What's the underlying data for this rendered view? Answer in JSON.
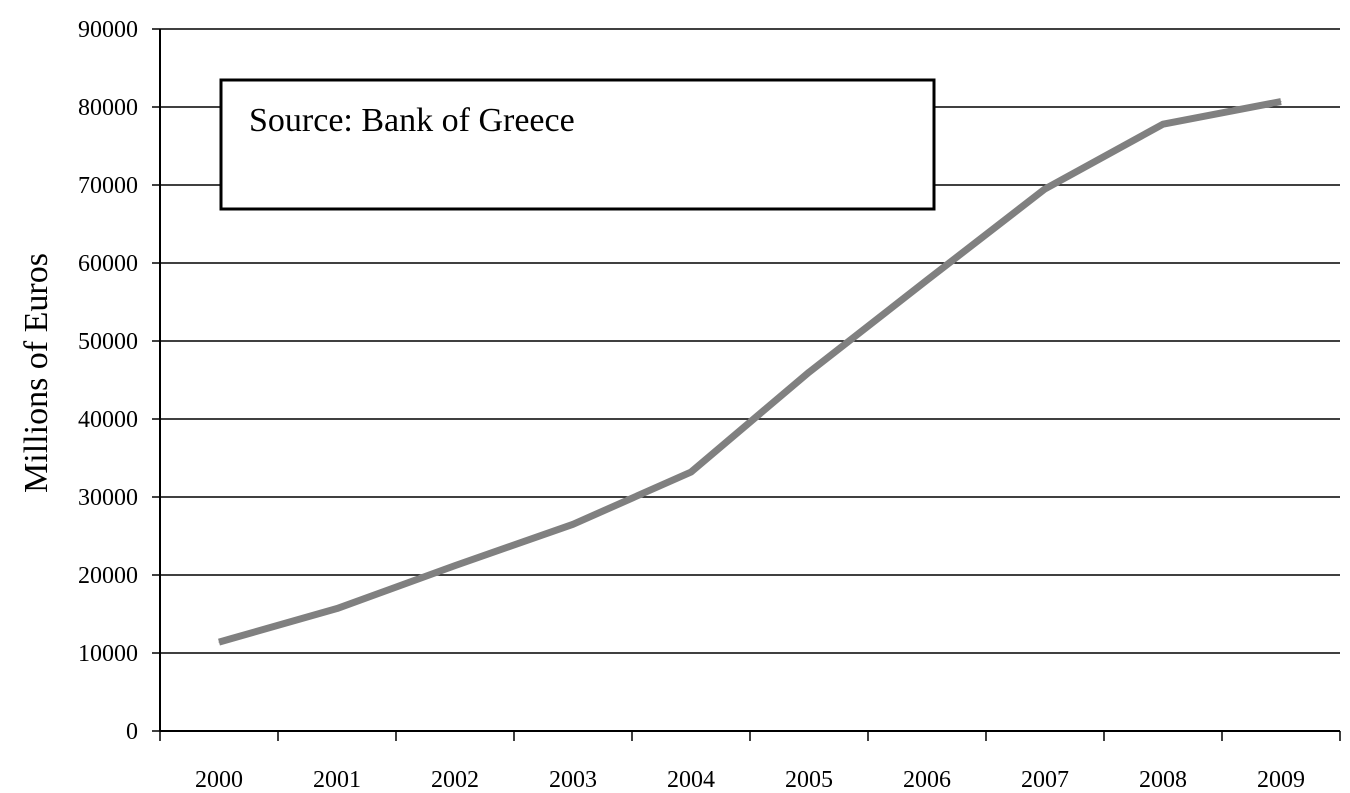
{
  "chart_data": {
    "type": "line",
    "title": "",
    "xlabel": "",
    "ylabel": "Millions of Euros",
    "categories": [
      "2000",
      "2001",
      "2002",
      "2003",
      "2004",
      "2005",
      "2006",
      "2007",
      "2008",
      "2009"
    ],
    "series": [
      {
        "values": [
          11400,
          15700,
          21200,
          26500,
          33200,
          46000,
          57800,
          69500,
          77800,
          80700
        ],
        "color": "#808080"
      }
    ],
    "ylim": [
      0,
      90000
    ],
    "yticks": [
      "0",
      "10000",
      "20000",
      "30000",
      "40000",
      "50000",
      "60000",
      "70000",
      "80000",
      "90000"
    ],
    "grid": true,
    "legend": "none",
    "annotation": "Source: Bank of Greece"
  }
}
